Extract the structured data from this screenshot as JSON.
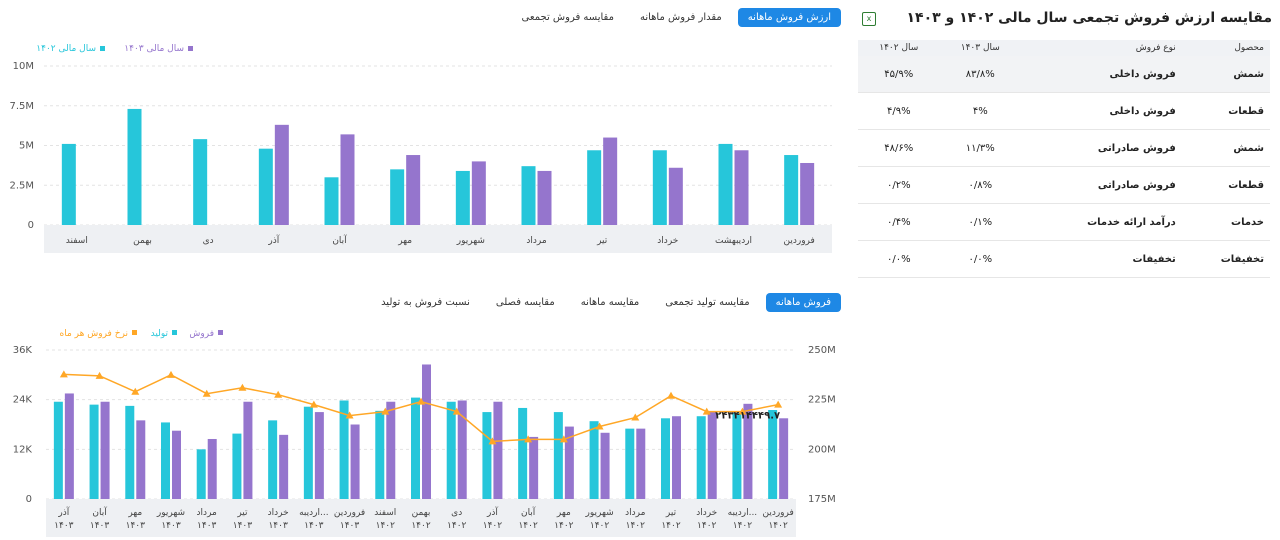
{
  "top_tabs": [
    {
      "label": "ارزش فروش ماهانه",
      "active": true
    },
    {
      "label": "مقدار فروش ماهانه",
      "active": false
    },
    {
      "label": "مقایسه فروش تجمعی",
      "active": false
    }
  ],
  "bottom_tabs": [
    {
      "label": "فروش ماهانه",
      "active": true
    },
    {
      "label": "مقایسه تولید تجمعی",
      "active": false
    },
    {
      "label": "مقایسه ماهانه",
      "active": false
    },
    {
      "label": "مقایسه فصلی",
      "active": false
    },
    {
      "label": "نسبت فروش به تولید",
      "active": false
    }
  ],
  "panel": {
    "title": "مقایسه ارزش فروش تجمعی سال مالی ۱۴۰۲ و ۱۴۰۳",
    "excel_icon": "excel-icon",
    "headers": [
      "محصول",
      "نوع فروش",
      "سال ۱۴۰۳",
      "سال ۱۴۰۲"
    ],
    "rows": [
      [
        "شمش",
        "فروش داخلی",
        "۸۳/۸%",
        "۴۵/۹%"
      ],
      [
        "قطعات",
        "فروش داخلی",
        "۴%",
        "۴/۹%"
      ],
      [
        "شمش",
        "فروش صادراتی",
        "۱۱/۳%",
        "۴۸/۶%"
      ],
      [
        "قطعات",
        "فروش صادراتی",
        "۰/۸%",
        "۰/۲%"
      ],
      [
        "خدمات",
        "درآمد ارائه خدمات",
        "۰/۱%",
        "۰/۴%"
      ],
      [
        "تخفیفات",
        "تخفیفات",
        "۰/۰%",
        "۰/۰%"
      ]
    ]
  },
  "colors": {
    "teal": "#26c6da",
    "purple": "#9575cd",
    "orange": "#ffa726",
    "accent": "#1e88e5"
  },
  "chart_data": [
    {
      "type": "bar",
      "categories": [
        "فروردین",
        "اردیبهشت",
        "خرداد",
        "تیر",
        "مرداد",
        "شهریور",
        "مهر",
        "آبان",
        "آذر",
        "دی",
        "بهمن",
        "اسفند"
      ],
      "series": [
        {
          "name": "سال مالی ۱۴۰۲",
          "color": "#26c6da",
          "values": [
            4.4,
            5.1,
            4.7,
            4.7,
            3.7,
            3.4,
            3.5,
            3.0,
            4.8,
            5.4,
            7.3,
            5.1
          ]
        },
        {
          "name": "سال مالی ۱۴۰۳",
          "color": "#9575cd",
          "values": [
            3.9,
            4.7,
            3.6,
            5.5,
            3.4,
            4.0,
            4.4,
            5.7,
            6.3,
            null,
            null,
            null
          ]
        }
      ],
      "y_ticks": [
        "0",
        "2.5M",
        "5M",
        "7.5M",
        "10M"
      ],
      "ylim": [
        0,
        10
      ],
      "grid": true,
      "legend": "top-left"
    },
    {
      "type": "bar",
      "categories": [
        "فروردین ۱۴۰۲",
        "اردیبه... ۱۴۰۲",
        "خرداد ۱۴۰۲",
        "تیر ۱۴۰۲",
        "مرداد ۱۴۰۲",
        "شهریور ۱۴۰۲",
        "مهر ۱۴۰۲",
        "آبان ۱۴۰۲",
        "آذر ۱۴۰۲",
        "دی ۱۴۰۲",
        "بهمن ۱۴۰۲",
        "اسفند ۱۴۰۲",
        "فروردین ۱۴۰۳",
        "اردیبه... ۱۴۰۳",
        "خرداد ۱۴۰۳",
        "تیر ۱۴۰۳",
        "مرداد ۱۴۰۳",
        "شهریور ۱۴۰۳",
        "مهر ۱۴۰۳",
        "آبان ۱۴۰۳",
        "آذر ۱۴۰۳"
      ],
      "series": [
        {
          "name": "فروش",
          "color": "#9575cd",
          "axis": "left",
          "values": [
            19.5,
            23,
            21,
            20,
            17,
            16,
            17.5,
            15,
            23.5,
            23.8,
            32.5,
            23.5,
            18,
            21,
            15.5,
            23.5,
            14.5,
            16.5,
            19,
            23.5,
            25.5
          ]
        },
        {
          "name": "تولید",
          "color": "#26c6da",
          "axis": "left",
          "values": [
            21.5,
            20.8,
            20,
            19.5,
            17,
            18.8,
            21,
            22,
            21,
            23.5,
            24.5,
            21.3,
            23.8,
            22.3,
            19,
            15.8,
            12,
            18.5,
            22.5,
            22.8,
            23.5
          ]
        },
        {
          "name": "نرخ فروش هر ماه",
          "color": "#ffa726",
          "axis": "right",
          "values": [
            222.5,
            219,
            219,
            227,
            216,
            211.5,
            205,
            205,
            204,
            219,
            224,
            219,
            217,
            222.5,
            227.5,
            231,
            228,
            237.5,
            229,
            237,
            237.7
          ]
        }
      ],
      "y_ticks_left": [
        "0",
        "12K",
        "24K",
        "36K"
      ],
      "ylim_left": [
        0,
        36
      ],
      "y_ticks_right": [
        "175M",
        "200M",
        "225M",
        "250M"
      ],
      "ylim_right": [
        175,
        250
      ],
      "annotation": "۲۴۳۴۱۴۴۴۹.۷",
      "grid": true,
      "legend": "top-left"
    }
  ]
}
